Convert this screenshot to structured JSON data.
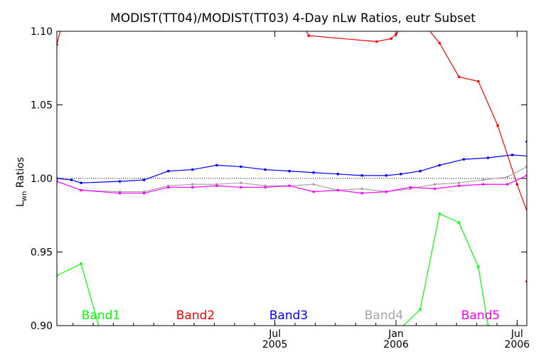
{
  "chart_data": {
    "type": "line",
    "title": "MODIST(TT04)/MODIST(TT03) 4-Day nLw Ratios, eutr Subset",
    "ylabel_main": "L",
    "ylabel_sub": "wn",
    "ylabel_rest": " Ratios",
    "ylim": [
      0.9,
      1.1
    ],
    "yticks": [
      {
        "value": 0.9,
        "label": "0.90"
      },
      {
        "value": 0.95,
        "label": "0.95"
      },
      {
        "value": 1.0,
        "label": "1.00"
      },
      {
        "value": 1.05,
        "label": "1.05"
      },
      {
        "value": 1.1,
        "label": "1.10"
      }
    ],
    "xlim": [
      2004.6,
      2006.54
    ],
    "xticks": [
      {
        "value": 2005.5,
        "month": "Jul",
        "year": "2005"
      },
      {
        "value": 2006.0,
        "month": "Jan",
        "year": "2006"
      },
      {
        "value": 2006.5,
        "month": "Jul",
        "year": "2006"
      }
    ],
    "reference_line": 1.0,
    "grid": false,
    "legend_position": "bottom",
    "series": [
      {
        "name": "Band1",
        "color": "#00ff00",
        "x": [
          2004.6,
          2004.7,
          2004.78,
          2005.98,
          2006.1,
          2006.18,
          2006.26,
          2006.34,
          2006.38
        ],
        "y": [
          0.934,
          0.942,
          0.896,
          0.892,
          0.911,
          0.976,
          0.97,
          0.94,
          0.9
        ]
      },
      {
        "name": "Band2",
        "color": "#ff0000",
        "x": [
          2004.6,
          2004.62,
          2005.62,
          2005.64,
          2005.92,
          2005.98,
          2006.0,
          2006.03,
          2006.12,
          2006.18,
          2006.26,
          2006.34,
          2006.42,
          2006.5,
          2006.58,
          2006.54
        ],
        "y": [
          1.091,
          1.104,
          1.103,
          1.097,
          1.093,
          1.095,
          1.098,
          1.104,
          1.104,
          1.092,
          1.069,
          1.066,
          1.036,
          0.996,
          0.96,
          0.93
        ]
      },
      {
        "name": "Band3",
        "color": "#0000ff",
        "x": [
          2004.6,
          2004.66,
          2004.7,
          2004.86,
          2004.96,
          2005.06,
          2005.16,
          2005.26,
          2005.36,
          2005.46,
          2005.56,
          2005.66,
          2005.76,
          2005.86,
          2005.96,
          2006.02,
          2006.1,
          2006.18,
          2006.28,
          2006.38,
          2006.48,
          2006.56,
          2006.62,
          2006.54
        ],
        "y": [
          1.0,
          0.999,
          0.997,
          0.998,
          0.999,
          1.005,
          1.006,
          1.009,
          1.008,
          1.006,
          1.005,
          1.004,
          1.003,
          1.002,
          1.002,
          1.003,
          1.005,
          1.009,
          1.013,
          1.014,
          1.016,
          1.015,
          1.02,
          1.025
        ]
      },
      {
        "name": "Band4",
        "color": "#a6a6a6",
        "x": [
          2004.6,
          2004.7,
          2004.86,
          2004.96,
          2005.06,
          2005.16,
          2005.26,
          2005.36,
          2005.46,
          2005.56,
          2005.66,
          2005.76,
          2005.86,
          2005.96,
          2006.06,
          2006.16,
          2006.26,
          2006.36,
          2006.46,
          2006.54
        ],
        "y": [
          0.998,
          0.992,
          0.991,
          0.991,
          0.995,
          0.996,
          0.996,
          0.997,
          0.995,
          0.995,
          0.996,
          0.992,
          0.993,
          0.991,
          0.993,
          0.996,
          0.997,
          0.999,
          1.001,
          1.008
        ]
      },
      {
        "name": "Band5",
        "color": "#ff00ff",
        "x": [
          2004.6,
          2004.7,
          2004.86,
          2004.96,
          2005.06,
          2005.16,
          2005.26,
          2005.36,
          2005.46,
          2005.56,
          2005.66,
          2005.76,
          2005.86,
          2005.96,
          2006.06,
          2006.16,
          2006.26,
          2006.36,
          2006.46,
          2006.54
        ],
        "y": [
          0.998,
          0.992,
          0.99,
          0.99,
          0.994,
          0.994,
          0.995,
          0.994,
          0.994,
          0.995,
          0.991,
          0.992,
          0.99,
          0.991,
          0.994,
          0.993,
          0.995,
          0.996,
          0.996,
          1.002
        ]
      }
    ]
  }
}
